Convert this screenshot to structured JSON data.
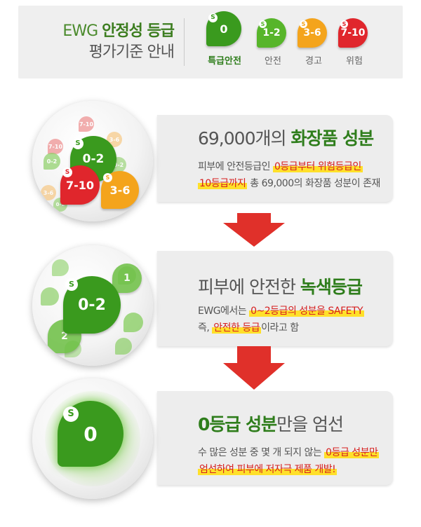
{
  "header": {
    "title_prefix": "EWG",
    "title_strong": "안정성 등급",
    "title_line2": "평가기준 안내",
    "legend": [
      {
        "badge": "0",
        "label": "특급안전",
        "color": "#3a9a1e"
      },
      {
        "badge": "1-2",
        "label": "안전",
        "color": "#57b52a"
      },
      {
        "badge": "3-6",
        "label": "경고",
        "color": "#f4a41c"
      },
      {
        "badge": "7-10",
        "label": "위험",
        "color": "#e0262c"
      }
    ]
  },
  "sections": [
    {
      "badges": [
        "0-2",
        "7-10",
        "3-6"
      ],
      "headline_prefix": "69,000개의",
      "headline_strong": "화장품 성분",
      "line1_pre": "피부에 안전등급인",
      "line1_hl": "0등급부터 위험등급인",
      "line2_hl": "10등급까지",
      "line2_post": "총 69,000의 화장품 성분이 존재"
    },
    {
      "badges": [
        "0-2",
        "1",
        "2"
      ],
      "headline_prefix": "피부에 안전한",
      "headline_strong": "녹색등급",
      "line1_pre": "EWG에서는",
      "line1_hl": "0~2등급의 성분을 SAFETY",
      "line2_pre": "즉,",
      "line2_hl": "안전한 등급",
      "line2_post": "이라고 함"
    },
    {
      "badges": [
        "0"
      ],
      "headline_strong": "0등급 성분",
      "headline_post": "만을 엄선",
      "line1_pre": "수 많은 성분 중 몇 개 되지 않는",
      "line1_hl": "0등급 성분만",
      "line2_hl": "엄선하여 피부에 저자극 제품 개발!"
    }
  ],
  "colors": {
    "green": "#3a9a1e",
    "light_green": "#57b52a",
    "orange": "#f4a41c",
    "red": "#e0262c",
    "arrow": "#e0302a"
  }
}
